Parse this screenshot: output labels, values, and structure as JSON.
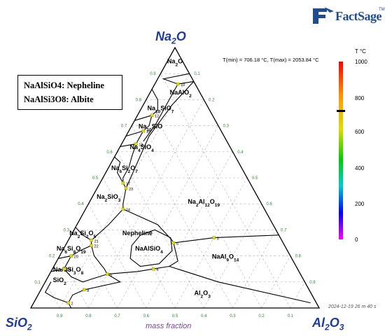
{
  "vertices": {
    "top": "Na2O",
    "left": "SiO2",
    "right": "Al2O3"
  },
  "xlabel": "mass fraction",
  "tminmax": "T(min) = 706.18 °C, T(max) = 2053.84 °C",
  "legend": [
    "NaAlSiO4: Nepheline",
    "NaAlSi3O8: Albite"
  ],
  "logo": {
    "name": "FactSage",
    "tm": "TM"
  },
  "colorbar": {
    "unit": "T °C",
    "ticks": [
      "1000",
      "800",
      "600",
      "400",
      "200",
      "0"
    ],
    "color_top": "#ff0000",
    "color_bottom": "#ff00ff",
    "marker_value": 706.18
  },
  "timestamp": "2024-12-19  26 m 40 s",
  "bottom_ticks": [
    "0.9",
    "0.8",
    "0.7",
    "0.6",
    "0.5",
    "0.4",
    "0.3",
    "0.2",
    "0.1"
  ],
  "left_ticks": [
    "0.1",
    "0.2",
    "0.3",
    "0.4",
    "0.5",
    "0.6",
    "0.7",
    "0.8",
    "0.9"
  ],
  "right_ticks": [
    "0.9",
    "0.8",
    "0.7",
    "0.6",
    "0.5",
    "0.4",
    "0.3",
    "0.2",
    "0.1"
  ],
  "phase_fields": [
    {
      "id": "na2o",
      "label": "Na2O",
      "na2o": 0.94,
      "al2o3": 0.03
    },
    {
      "id": "naalo2",
      "label": "NaAlO2",
      "na2o": 0.82,
      "al2o3": 0.11
    },
    {
      "id": "na10sio7",
      "label": "Na10SiO7",
      "na2o": 0.76,
      "al2o3": 0.07
    },
    {
      "id": "na10sio",
      "label": "Na10SiO",
      "na2o": 0.69,
      "al2o3": 0.07
    },
    {
      "id": "na4sio4",
      "label": "Na4SiO4",
      "na2o": 0.61,
      "al2o3": 0.08
    },
    {
      "id": "na6si2o7",
      "label": "Na6Si2O7",
      "na2o": 0.53,
      "al2o3": 0.06
    },
    {
      "id": "na2sio3",
      "label": "Na2SiO3",
      "na2o": 0.42,
      "al2o3": 0.06
    },
    {
      "id": "na2al12o19",
      "label": "Na2Al12O19",
      "na2o": 0.4,
      "al2o3": 0.4
    },
    {
      "id": "na2si2o5",
      "label": "Na2Si2O5",
      "na2o": 0.28,
      "al2o3": 0.04
    },
    {
      "id": "na6si8o19",
      "label": "Na6Si8O19",
      "na2o": 0.22,
      "al2o3": 0.03
    },
    {
      "id": "nepheline",
      "label": "Nepheline",
      "na2o": 0.28,
      "al2o3": 0.23
    },
    {
      "id": "naalsio4",
      "label": "NaAlSiO4",
      "na2o": 0.22,
      "al2o3": 0.3
    },
    {
      "id": "naal9o14",
      "label": "NaAl9O14",
      "na2o": 0.19,
      "al2o3": 0.58
    },
    {
      "id": "naalsi3o8",
      "label": "NaAlSi3O8",
      "na2o": 0.14,
      "al2o3": 0.06
    },
    {
      "id": "sio2",
      "label": "SiO2",
      "na2o": 0.1,
      "al2o3": 0.05
    },
    {
      "id": "al2o3",
      "label": "Al2O3",
      "na2o": 0.05,
      "al2o3": 0.57
    }
  ],
  "invariant_points": [
    {
      "label": "10",
      "na2o": 0.86,
      "al2o3": 0.08
    },
    {
      "label": "12",
      "na2o": 0.74,
      "al2o3": 0.05
    },
    {
      "label": "13",
      "na2o": 0.68,
      "al2o3": 0.05
    },
    {
      "label": "18",
      "na2o": 0.63,
      "al2o3": 0.05
    },
    {
      "label": "17",
      "na2o": 0.48,
      "al2o3": 0.08
    },
    {
      "label": "23",
      "na2o": 0.46,
      "al2o3": 0.1
    },
    {
      "label": "24",
      "na2o": 0.38,
      "al2o3": 0.13
    },
    {
      "label": "21",
      "na2o": 0.26,
      "al2o3": 0.08
    },
    {
      "label": "22",
      "na2o": 0.24,
      "al2o3": 0.09
    },
    {
      "label": "20",
      "na2o": 0.2,
      "al2o3": 0.04
    },
    {
      "label": "14",
      "na2o": 0.15,
      "al2o3": 0.04
    },
    {
      "label": "6",
      "na2o": 0.25,
      "al2o3": 0.37
    },
    {
      "label": "3",
      "na2o": 0.27,
      "al2o3": 0.5
    },
    {
      "label": "4",
      "na2o": 0.15,
      "al2o3": 0.35
    },
    {
      "label": "5",
      "na2o": 0.13,
      "al2o3": 0.2
    },
    {
      "label": "8",
      "na2o": 0.07,
      "al2o3": 0.15
    },
    {
      "label": "2",
      "na2o": 0.02,
      "al2o3": 0.12
    }
  ]
}
